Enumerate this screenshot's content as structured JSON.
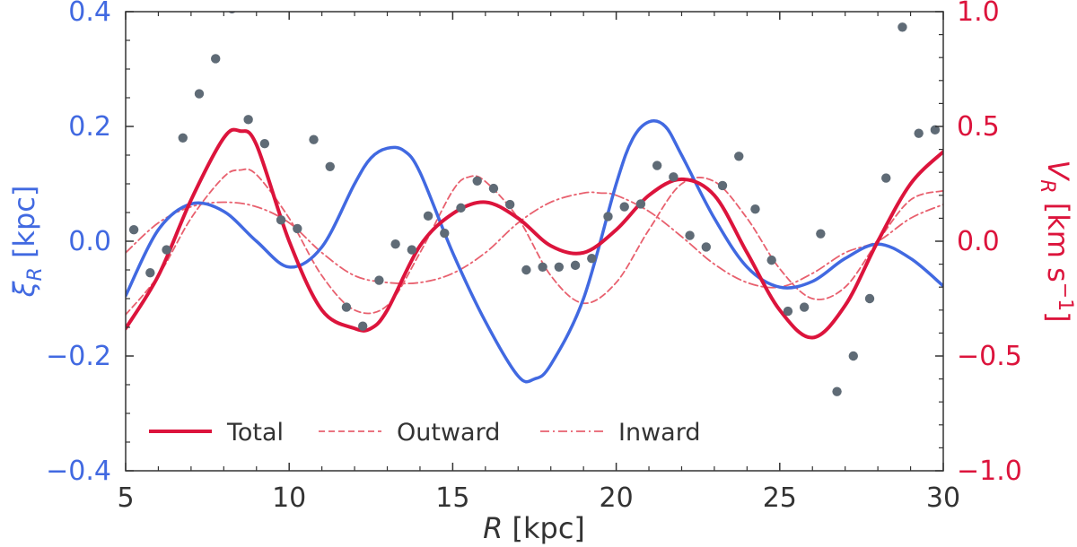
{
  "chart_data": {
    "type": "line",
    "xlabel": "R [kpc]",
    "ylabel_left": "ξR [kpc]",
    "ylabel_right": "VR [km s⁻¹]",
    "xlim": [
      5,
      30
    ],
    "ylim_left": [
      -0.4,
      0.4
    ],
    "ylim_right": [
      -1.0,
      1.0
    ],
    "x_ticks": [
      {
        "value": 5,
        "label": "5"
      },
      {
        "value": 10,
        "label": "10"
      },
      {
        "value": 15,
        "label": "15"
      },
      {
        "value": 20,
        "label": "20"
      },
      {
        "value": 25,
        "label": "25"
      },
      {
        "value": 30,
        "label": "30"
      }
    ],
    "y_ticks_left": [
      {
        "value": -0.4,
        "label": "−0.4"
      },
      {
        "value": -0.2,
        "label": "−0.2"
      },
      {
        "value": 0.0,
        "label": "0.0"
      },
      {
        "value": 0.2,
        "label": "0.2"
      },
      {
        "value": 0.4,
        "label": "0.4"
      }
    ],
    "y_ticks_right": [
      {
        "value": -1.0,
        "label": "−1.0"
      },
      {
        "value": -0.5,
        "label": "−0.5"
      },
      {
        "value": 0.0,
        "label": "0.0"
      },
      {
        "value": 0.5,
        "label": "0.5"
      },
      {
        "value": 1.0,
        "label": "1.0"
      }
    ],
    "colors": {
      "left_axis": "#4169e1",
      "right_axis": "#dc143c",
      "dashed": "#e8606e",
      "points": "#5f6b76",
      "frame": "#333333"
    },
    "legend": {
      "placement": "lower-left",
      "entries": [
        {
          "label": "Total",
          "style": "solid"
        },
        {
          "label": "Outward",
          "style": "dashed"
        },
        {
          "label": "Inward",
          "style": "dashdot"
        }
      ]
    },
    "series": [
      {
        "axis": "left",
        "style": "solid-blue",
        "x": [
          5,
          6,
          7,
          8,
          9,
          10,
          11,
          12,
          12.5,
          13,
          13.5,
          14,
          15,
          16,
          17,
          17.5,
          18,
          19,
          20,
          20.5,
          21,
          21.5,
          22,
          23,
          24,
          25,
          26,
          27,
          28,
          29,
          30
        ],
        "y": [
          -0.095,
          0.02,
          0.065,
          0.052,
          0.0,
          -0.045,
          -0.01,
          0.1,
          0.145,
          0.162,
          0.158,
          0.12,
          -0.02,
          -0.14,
          -0.235,
          -0.24,
          -0.215,
          -0.1,
          0.1,
          0.178,
          0.208,
          0.2,
          0.15,
          0.04,
          -0.045,
          -0.08,
          -0.07,
          -0.03,
          -0.005,
          -0.03,
          -0.078
        ]
      },
      {
        "axis": "right",
        "style": "solid-red",
        "name": "Total",
        "x": [
          5,
          6,
          7,
          8,
          8.5,
          9,
          10,
          11,
          12,
          12.5,
          13,
          14,
          15,
          16,
          17,
          18,
          19,
          20,
          21,
          22,
          23,
          24,
          25,
          26,
          27,
          28,
          29,
          30
        ],
        "y": [
          -0.38,
          -0.15,
          0.18,
          0.45,
          0.48,
          0.42,
          0.0,
          -0.3,
          -0.38,
          -0.38,
          -0.3,
          -0.02,
          0.12,
          0.17,
          0.1,
          -0.02,
          -0.05,
          0.05,
          0.2,
          0.27,
          0.2,
          -0.05,
          -0.3,
          -0.42,
          -0.28,
          0.0,
          0.25,
          0.39
        ]
      },
      {
        "axis": "right",
        "style": "dashed",
        "name": "Outward",
        "x": [
          5,
          6,
          7,
          8,
          8.5,
          9,
          10,
          11,
          12,
          13,
          14,
          15,
          15.5,
          16,
          17,
          18,
          19,
          20,
          21,
          22,
          23,
          24,
          25,
          26,
          27,
          28,
          29,
          30
        ],
        "y": [
          -0.32,
          -0.15,
          0.1,
          0.28,
          0.31,
          0.29,
          0.1,
          -0.15,
          -0.3,
          -0.28,
          -0.05,
          0.22,
          0.28,
          0.26,
          0.1,
          -0.15,
          -0.27,
          -0.18,
          0.05,
          0.25,
          0.26,
          0.1,
          -0.12,
          -0.25,
          -0.2,
          0.0,
          0.18,
          0.22
        ]
      },
      {
        "axis": "right",
        "style": "dashdot",
        "name": "Inward",
        "x": [
          5,
          6,
          7,
          8,
          9,
          10,
          11,
          12,
          13,
          14,
          15,
          16,
          17,
          18,
          19,
          19.5,
          20,
          21,
          22,
          23,
          24,
          25,
          26,
          27,
          28,
          29,
          30
        ],
        "y": [
          -0.05,
          0.08,
          0.15,
          0.17,
          0.15,
          0.08,
          -0.05,
          -0.15,
          -0.18,
          -0.18,
          -0.14,
          -0.05,
          0.08,
          0.17,
          0.21,
          0.21,
          0.2,
          0.13,
          0.02,
          -0.1,
          -0.18,
          -0.2,
          -0.14,
          -0.05,
          0.0,
          0.1,
          0.16
        ]
      }
    ],
    "scatter": {
      "axis": "left",
      "x": [
        5.25,
        5.75,
        6.25,
        6.75,
        7.25,
        7.75,
        8.25,
        8.75,
        9.25,
        9.75,
        10.25,
        10.75,
        11.25,
        11.75,
        12.25,
        12.75,
        13.25,
        13.75,
        14.25,
        14.75,
        15.25,
        15.75,
        16.25,
        16.75,
        17.25,
        17.75,
        18.25,
        18.75,
        19.25,
        19.75,
        20.25,
        20.75,
        21.25,
        21.75,
        22.25,
        22.75,
        23.25,
        23.75,
        24.25,
        24.75,
        25.25,
        25.75,
        26.25,
        26.75,
        27.25,
        27.75,
        28.25,
        28.75,
        29.25,
        29.75
      ],
      "y": [
        0.02,
        -0.055,
        -0.015,
        0.18,
        0.257,
        0.318,
        0.405,
        0.212,
        0.17,
        0.037,
        0.022,
        0.177,
        0.13,
        -0.115,
        -0.148,
        -0.068,
        -0.005,
        -0.015,
        0.044,
        0.014,
        0.058,
        0.105,
        0.092,
        0.064,
        -0.05,
        -0.045,
        -0.045,
        -0.042,
        -0.03,
        0.043,
        0.06,
        0.065,
        0.132,
        0.112,
        0.01,
        -0.01,
        0.097,
        0.148,
        0.056,
        -0.033,
        -0.122,
        -0.115,
        0.013,
        -0.262,
        -0.2,
        -0.1,
        0.11,
        0.373,
        0.188,
        0.194
      ]
    }
  }
}
